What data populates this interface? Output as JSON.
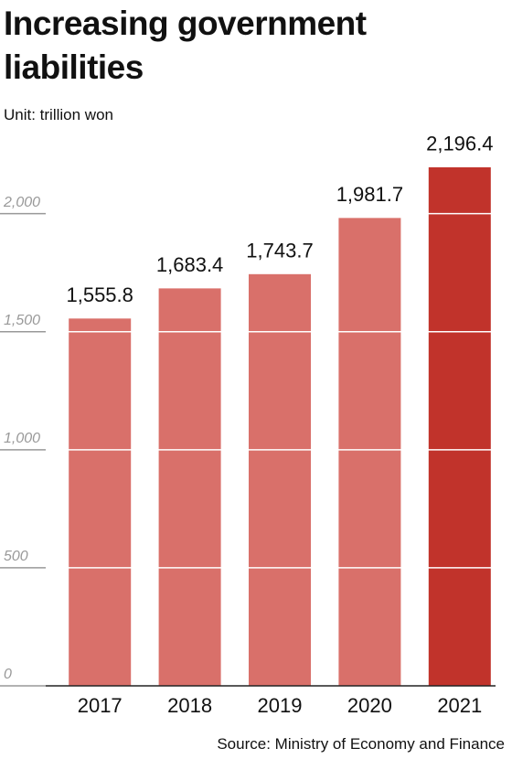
{
  "chart_data": {
    "type": "bar",
    "title": "Increasing government liabilities",
    "subtitle": "Unit: trillion won",
    "source": "Source: Ministry of Economy and Finance",
    "categories": [
      "2017",
      "2018",
      "2019",
      "2020",
      "2021"
    ],
    "values": [
      1555.8,
      1683.4,
      1743.7,
      1981.7,
      2196.4
    ],
    "value_labels": [
      "1,555.8",
      "1,683.4",
      "1,743.7",
      "1,981.7",
      "2,196.4"
    ],
    "colors": [
      "#d9706a",
      "#d9706a",
      "#d9706a",
      "#d9706a",
      "#c1332b"
    ],
    "ylim": [
      0,
      2200
    ],
    "yticks": [
      0,
      500,
      {
        "value": 1000,
        "label": "1,000"
      },
      {
        "value": 1500,
        "label": "1,500"
      },
      {
        "value": 2000,
        "label": "2,000"
      }
    ],
    "grid": true
  }
}
